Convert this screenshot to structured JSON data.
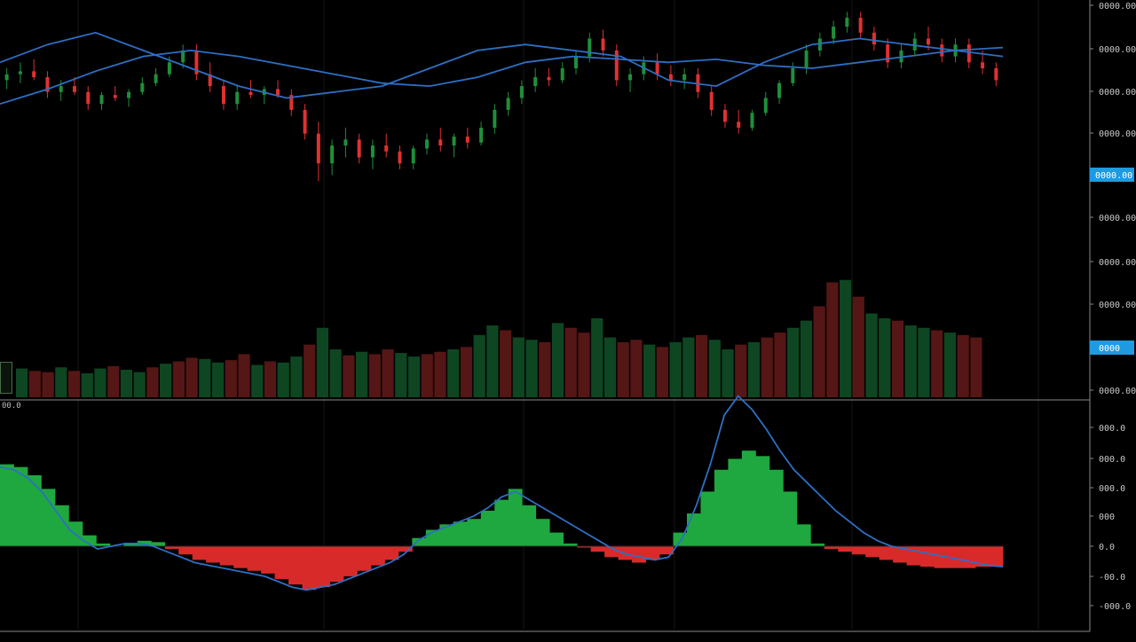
{
  "colors": {
    "background": "#000000",
    "up": "#1f8f3a",
    "down": "#e03131",
    "hist_up": "#1fa83f",
    "hist_down": "#d92a2a",
    "ma": "#2d6fc4",
    "badge": "#1e9be0",
    "grid": "#161616",
    "axis_line": "#8a8a8a"
  },
  "price_axis": {
    "labels": [
      "0000.00",
      "0000.00",
      "0000.00",
      "0000.00",
      "0000.00",
      "0000.00",
      "0000.00",
      "0000.00",
      "0000.00"
    ],
    "badge_price": "0000.00",
    "badge_volume": "0000"
  },
  "indicator": {
    "pane_label": "00.0",
    "axis_labels": [
      "000.0",
      "000.0",
      "000.0",
      "000",
      "0.0",
      "-00.0",
      "-000.0"
    ]
  },
  "chart_data": [
    {
      "type": "candlestick",
      "title": "",
      "ylim": [
        0,
        100
      ],
      "grid": true,
      "moving_averages": [
        {
          "values": [
            82,
            88,
            92,
            86,
            80,
            74,
            70,
            72,
            74,
            80,
            86,
            88,
            86,
            84,
            76,
            74,
            82,
            88,
            90,
            88,
            86,
            84
          ]
        },
        {
          "values": [
            68,
            73,
            79,
            84,
            86,
            84,
            81,
            78,
            75,
            74,
            77,
            82,
            84,
            83,
            82,
            83,
            81,
            80,
            82,
            84,
            86,
            87
          ]
        }
      ],
      "candles": [
        {
          "o": 76,
          "h": 80,
          "l": 73,
          "c": 78
        },
        {
          "o": 78,
          "h": 82,
          "l": 75,
          "c": 79
        },
        {
          "o": 79,
          "h": 83,
          "l": 76,
          "c": 77
        },
        {
          "o": 77,
          "h": 79,
          "l": 70,
          "c": 72
        },
        {
          "o": 72,
          "h": 76,
          "l": 69,
          "c": 74
        },
        {
          "o": 74,
          "h": 77,
          "l": 71,
          "c": 72
        },
        {
          "o": 72,
          "h": 74,
          "l": 66,
          "c": 68
        },
        {
          "o": 68,
          "h": 72,
          "l": 66,
          "c": 71
        },
        {
          "o": 71,
          "h": 74,
          "l": 69,
          "c": 70
        },
        {
          "o": 70,
          "h": 73,
          "l": 67,
          "c": 72
        },
        {
          "o": 72,
          "h": 77,
          "l": 71,
          "c": 75
        },
        {
          "o": 75,
          "h": 80,
          "l": 74,
          "c": 78
        },
        {
          "o": 78,
          "h": 84,
          "l": 77,
          "c": 82
        },
        {
          "o": 82,
          "h": 88,
          "l": 80,
          "c": 86
        },
        {
          "o": 86,
          "h": 88,
          "l": 76,
          "c": 78
        },
        {
          "o": 78,
          "h": 82,
          "l": 72,
          "c": 74
        },
        {
          "o": 74,
          "h": 76,
          "l": 66,
          "c": 68
        },
        {
          "o": 68,
          "h": 74,
          "l": 66,
          "c": 72
        },
        {
          "o": 72,
          "h": 76,
          "l": 70,
          "c": 71
        },
        {
          "o": 71,
          "h": 74,
          "l": 68,
          "c": 73
        },
        {
          "o": 73,
          "h": 76,
          "l": 70,
          "c": 71
        },
        {
          "o": 71,
          "h": 73,
          "l": 64,
          "c": 66
        },
        {
          "o": 66,
          "h": 68,
          "l": 56,
          "c": 58
        },
        {
          "o": 58,
          "h": 62,
          "l": 42,
          "c": 48
        },
        {
          "o": 48,
          "h": 56,
          "l": 44,
          "c": 54
        },
        {
          "o": 54,
          "h": 60,
          "l": 50,
          "c": 56
        },
        {
          "o": 56,
          "h": 58,
          "l": 48,
          "c": 50
        },
        {
          "o": 50,
          "h": 56,
          "l": 46,
          "c": 54
        },
        {
          "o": 54,
          "h": 58,
          "l": 50,
          "c": 52
        },
        {
          "o": 52,
          "h": 54,
          "l": 46,
          "c": 48
        },
        {
          "o": 48,
          "h": 54,
          "l": 46,
          "c": 53
        },
        {
          "o": 53,
          "h": 58,
          "l": 51,
          "c": 56
        },
        {
          "o": 56,
          "h": 60,
          "l": 52,
          "c": 54
        },
        {
          "o": 54,
          "h": 58,
          "l": 50,
          "c": 57
        },
        {
          "o": 57,
          "h": 60,
          "l": 53,
          "c": 55
        },
        {
          "o": 55,
          "h": 62,
          "l": 54,
          "c": 60
        },
        {
          "o": 60,
          "h": 68,
          "l": 58,
          "c": 66
        },
        {
          "o": 66,
          "h": 72,
          "l": 64,
          "c": 70
        },
        {
          "o": 70,
          "h": 76,
          "l": 68,
          "c": 74
        },
        {
          "o": 74,
          "h": 80,
          "l": 72,
          "c": 77
        },
        {
          "o": 77,
          "h": 80,
          "l": 74,
          "c": 76
        },
        {
          "o": 76,
          "h": 82,
          "l": 75,
          "c": 80
        },
        {
          "o": 80,
          "h": 86,
          "l": 78,
          "c": 84
        },
        {
          "o": 84,
          "h": 92,
          "l": 82,
          "c": 90
        },
        {
          "o": 90,
          "h": 93,
          "l": 84,
          "c": 86
        },
        {
          "o": 86,
          "h": 88,
          "l": 74,
          "c": 76
        },
        {
          "o": 76,
          "h": 80,
          "l": 72,
          "c": 78
        },
        {
          "o": 78,
          "h": 84,
          "l": 76,
          "c": 82
        },
        {
          "o": 82,
          "h": 85,
          "l": 76,
          "c": 78
        },
        {
          "o": 78,
          "h": 81,
          "l": 74,
          "c": 76
        },
        {
          "o": 76,
          "h": 80,
          "l": 73,
          "c": 78
        },
        {
          "o": 78,
          "h": 80,
          "l": 70,
          "c": 72
        },
        {
          "o": 72,
          "h": 74,
          "l": 64,
          "c": 66
        },
        {
          "o": 66,
          "h": 68,
          "l": 60,
          "c": 62
        },
        {
          "o": 62,
          "h": 66,
          "l": 58,
          "c": 60
        },
        {
          "o": 60,
          "h": 66,
          "l": 59,
          "c": 65
        },
        {
          "o": 65,
          "h": 72,
          "l": 64,
          "c": 70
        },
        {
          "o": 70,
          "h": 76,
          "l": 68,
          "c": 75
        },
        {
          "o": 75,
          "h": 82,
          "l": 74,
          "c": 80
        },
        {
          "o": 80,
          "h": 88,
          "l": 78,
          "c": 86
        },
        {
          "o": 86,
          "h": 92,
          "l": 84,
          "c": 90
        },
        {
          "o": 90,
          "h": 96,
          "l": 88,
          "c": 94
        },
        {
          "o": 94,
          "h": 99,
          "l": 92,
          "c": 97
        },
        {
          "o": 97,
          "h": 99,
          "l": 90,
          "c": 92
        },
        {
          "o": 92,
          "h": 94,
          "l": 86,
          "c": 88
        },
        {
          "o": 88,
          "h": 90,
          "l": 80,
          "c": 82
        },
        {
          "o": 82,
          "h": 88,
          "l": 80,
          "c": 86
        },
        {
          "o": 86,
          "h": 92,
          "l": 84,
          "c": 90
        },
        {
          "o": 90,
          "h": 94,
          "l": 86,
          "c": 88
        },
        {
          "o": 88,
          "h": 90,
          "l": 82,
          "c": 84
        },
        {
          "o": 84,
          "h": 90,
          "l": 82,
          "c": 88
        },
        {
          "o": 88,
          "h": 90,
          "l": 80,
          "c": 82
        },
        {
          "o": 82,
          "h": 86,
          "l": 78,
          "c": 80
        },
        {
          "o": 80,
          "h": 82,
          "l": 74,
          "c": 76
        }
      ],
      "volume": [
        24,
        22,
        21,
        25,
        22,
        20,
        24,
        26,
        23,
        21,
        25,
        28,
        30,
        33,
        32,
        29,
        31,
        36,
        27,
        30,
        29,
        34,
        44,
        58,
        40,
        35,
        38,
        36,
        40,
        37,
        34,
        36,
        38,
        40,
        42,
        52,
        60,
        56,
        50,
        48,
        46,
        62,
        58,
        54,
        66,
        50,
        46,
        48,
        44,
        42,
        46,
        50,
        52,
        48,
        40,
        44,
        46,
        50,
        54,
        58,
        64,
        76,
        96,
        98,
        84,
        70,
        66,
        64,
        60,
        58,
        56,
        54,
        52,
        50
      ]
    },
    {
      "type": "bar",
      "title": "",
      "ylim": [
        -30,
        100
      ],
      "histogram": [
        60,
        58,
        52,
        42,
        30,
        18,
        8,
        2,
        0,
        2,
        4,
        3,
        -2,
        -6,
        -10,
        -12,
        -14,
        -16,
        -18,
        -20,
        -24,
        -28,
        -32,
        -30,
        -26,
        -22,
        -18,
        -14,
        -10,
        -4,
        6,
        12,
        16,
        18,
        20,
        26,
        34,
        42,
        30,
        20,
        10,
        2,
        -1,
        -4,
        -8,
        -10,
        -12,
        -10,
        -6,
        10,
        24,
        40,
        56,
        64,
        70,
        66,
        56,
        40,
        16,
        2,
        -2,
        -4,
        -6,
        -8,
        -10,
        -12,
        -14,
        -15,
        -16,
        -16,
        -16,
        -15,
        -15
      ],
      "signal": [
        58,
        56,
        50,
        40,
        26,
        12,
        4,
        -2,
        0,
        2,
        2,
        0,
        -4,
        -8,
        -12,
        -14,
        -16,
        -18,
        -20,
        -22,
        -26,
        -30,
        -32,
        -30,
        -28,
        -24,
        -20,
        -16,
        -12,
        -6,
        4,
        10,
        14,
        18,
        22,
        28,
        36,
        40,
        34,
        28,
        22,
        16,
        10,
        4,
        -2,
        -6,
        -8,
        -10,
        -8,
        6,
        30,
        60,
        96,
        110,
        100,
        86,
        70,
        56,
        46,
        36,
        26,
        18,
        10,
        4,
        0,
        -2,
        -4,
        -6,
        -8,
        -10,
        -12,
        -14,
        -15
      ]
    }
  ]
}
